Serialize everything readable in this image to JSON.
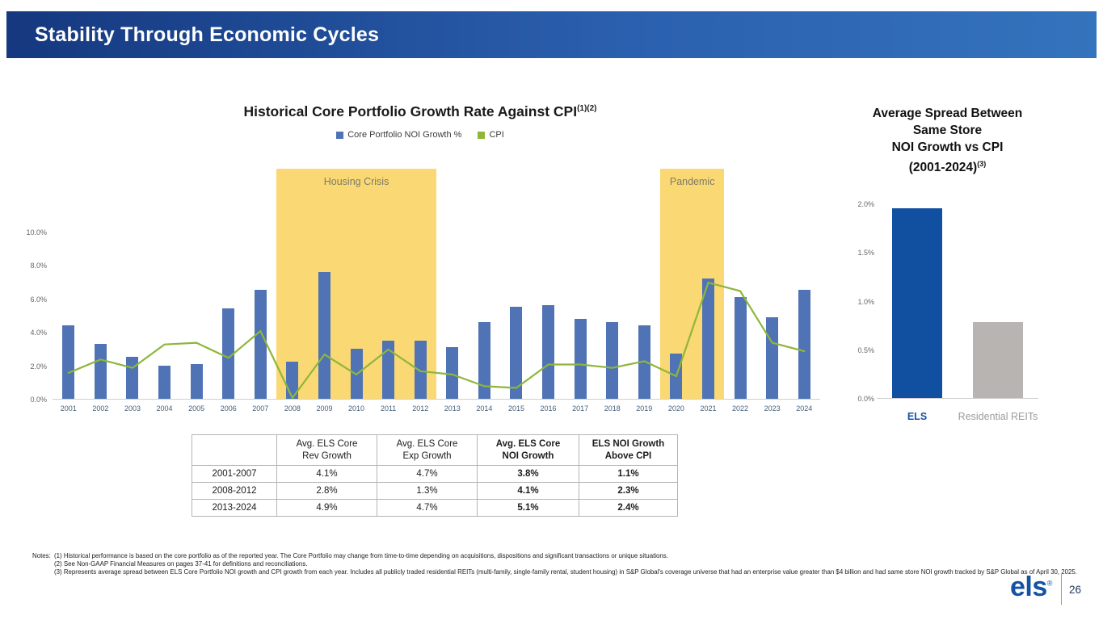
{
  "header": {
    "title": "Stability Through Economic Cycles"
  },
  "main_chart": {
    "title": "Historical Core Portfolio Growth Rate Against CPI",
    "title_sup": "(1)(2)"
  },
  "side_chart": {
    "title_lines": [
      "Average Spread Between",
      "Same Store",
      "NOI Growth vs CPI",
      "(2001-2024)"
    ],
    "title_sup": "(3)"
  },
  "chart_data": [
    {
      "type": "bar",
      "title": "Historical Core Portfolio Growth Rate Against CPI(1)(2)",
      "categories": [
        "2001",
        "2002",
        "2003",
        "2004",
        "2005",
        "2006",
        "2007",
        "2008",
        "2009",
        "2010",
        "2011",
        "2012",
        "2013",
        "2014",
        "2015",
        "2016",
        "2017",
        "2018",
        "2019",
        "2020",
        "2021",
        "2022",
        "2023",
        "2024"
      ],
      "series": [
        {
          "name": "Core Portfolio NOI Growth %",
          "type": "bar",
          "color": "#4f73b4",
          "values": [
            4.4,
            3.3,
            2.5,
            2.0,
            2.1,
            5.4,
            6.5,
            2.2,
            7.6,
            3.0,
            3.5,
            3.5,
            3.1,
            4.6,
            5.5,
            5.6,
            4.8,
            4.6,
            4.4,
            2.7,
            7.2,
            6.1,
            4.9,
            6.5
          ]
        },
        {
          "name": "CPI",
          "type": "line",
          "color": "#8eb63b",
          "values": [
            1.6,
            2.4,
            1.9,
            3.3,
            3.4,
            2.5,
            4.1,
            0.1,
            2.7,
            1.5,
            3.0,
            1.7,
            1.5,
            0.8,
            0.7,
            2.1,
            2.1,
            1.9,
            2.3,
            1.4,
            7.0,
            6.5,
            3.4,
            2.9
          ]
        }
      ],
      "ylim": [
        0,
        10
      ],
      "yticks": [
        0,
        2,
        4,
        6,
        8,
        10
      ],
      "ytick_labels": [
        "0.0%",
        "2.0%",
        "4.0%",
        "6.0%",
        "8.0%",
        "10.0%"
      ],
      "grid": false,
      "legend_position": "top",
      "annotations": [
        {
          "label": "Housing Crisis",
          "start": "2008",
          "end": "2012",
          "color": "#fad873"
        },
        {
          "label": "Pandemic",
          "start": "2020",
          "end": "2021",
          "color": "#fad873"
        }
      ]
    },
    {
      "type": "bar",
      "title": "Average Spread Between Same Store NOI Growth vs CPI (2001-2024)(3)",
      "categories": [
        "ELS",
        "Residential REITs"
      ],
      "values": [
        1.95,
        0.78
      ],
      "colors": [
        "#1150a0",
        "#b7b4b1"
      ],
      "category_label_colors": [
        "#1452a4",
        "#9b9b9b"
      ],
      "category_label_bold": [
        true,
        false
      ],
      "ylim": [
        0,
        2
      ],
      "yticks": [
        0,
        0.5,
        1.0,
        1.5,
        2.0
      ],
      "ytick_labels": [
        "0.0%",
        "0.5%",
        "1.0%",
        "1.5%",
        "2.0%"
      ],
      "grid": false
    }
  ],
  "table": {
    "headers": [
      "",
      "Avg. ELS Core\nRev Growth",
      "Avg. ELS Core\nExp Growth",
      "Avg. ELS Core\nNOI Growth",
      "ELS NOI Growth\nAbove CPI"
    ],
    "bold_columns": [
      3,
      4
    ],
    "rows": [
      {
        "label": "2001-2007",
        "values": [
          "4.1%",
          "4.7%",
          "3.8%",
          "1.1%"
        ]
      },
      {
        "label": "2008-2012",
        "values": [
          "2.8%",
          "1.3%",
          "4.1%",
          "2.3%"
        ]
      },
      {
        "label": "2013-2024",
        "values": [
          "4.9%",
          "4.7%",
          "5.1%",
          "2.4%"
        ]
      }
    ]
  },
  "notes": {
    "label": "Notes:",
    "items": [
      "(1) Historical performance is based on the core portfolio as of the reported year. The Core Portfolio may change from time-to-time depending on acquisitions, dispositions and significant transactions or unique situations.",
      "(2) See Non-GAAP Financial Measures on pages 37-41 for definitions and reconciliations.",
      "(3) Represents average spread between ELS Core Portfolio NOI growth and CPI growth from each year. Includes all publicly traded residential REITs (multi-family, single-family rental, student housing) in S&P Global's coverage universe that had an enterprise value greater than $4 billion and had same store NOI growth tracked by S&P Global as of April 30, 2025."
    ]
  },
  "footer": {
    "logo": "els",
    "registered": "®",
    "page": "26"
  }
}
